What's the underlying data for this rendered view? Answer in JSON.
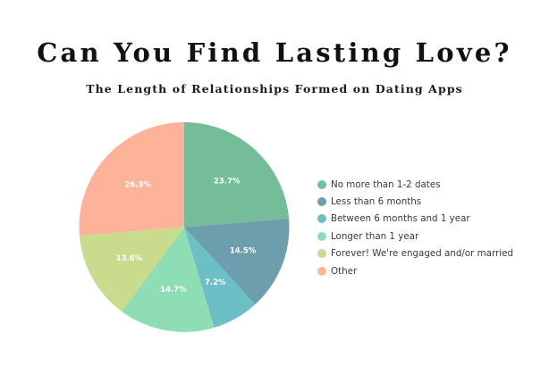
{
  "header": {
    "title": "Can You Find Lasting Love?",
    "subtitle": "The Length of Relationships Formed on Dating Apps"
  },
  "chart_data": {
    "type": "pie",
    "title": "Can You Find Lasting Love?",
    "subtitle": "The Length of Relationships Formed on Dating Apps",
    "start_angle": "12 o'clock, clockwise",
    "legend_position": "right",
    "categories": [
      "No more than 1-2 dates",
      "Less than 6 months",
      "Between 6 months and 1 year",
      "Longer than 1 year",
      "Forever! We're engaged and/or married",
      "Other"
    ],
    "values": [
      23.7,
      14.5,
      7.2,
      14.7,
      13.6,
      26.3
    ],
    "labels": [
      "23.7%",
      "14.5%",
      "7.2%",
      "14.7%",
      "13.6%",
      "26.3%"
    ],
    "colors": [
      "#74BD98",
      "#6C9EAE",
      "#6CBFC4",
      "#8EDDB4",
      "#C9DC8E",
      "#FDB39A"
    ],
    "unit": "%"
  },
  "legend": {
    "items": [
      {
        "label": "No more than 1-2 dates",
        "color": "#74BD98"
      },
      {
        "label": "Less than 6 months",
        "color": "#6C9EAE"
      },
      {
        "label": "Between 6 months and 1 year",
        "color": "#6CBFC4"
      },
      {
        "label": "Longer than 1 year",
        "color": "#8EDDB4"
      },
      {
        "label": "Forever! We're engaged and/or married",
        "color": "#C9DC8E"
      },
      {
        "label": "Other",
        "color": "#FDB39A"
      }
    ]
  }
}
